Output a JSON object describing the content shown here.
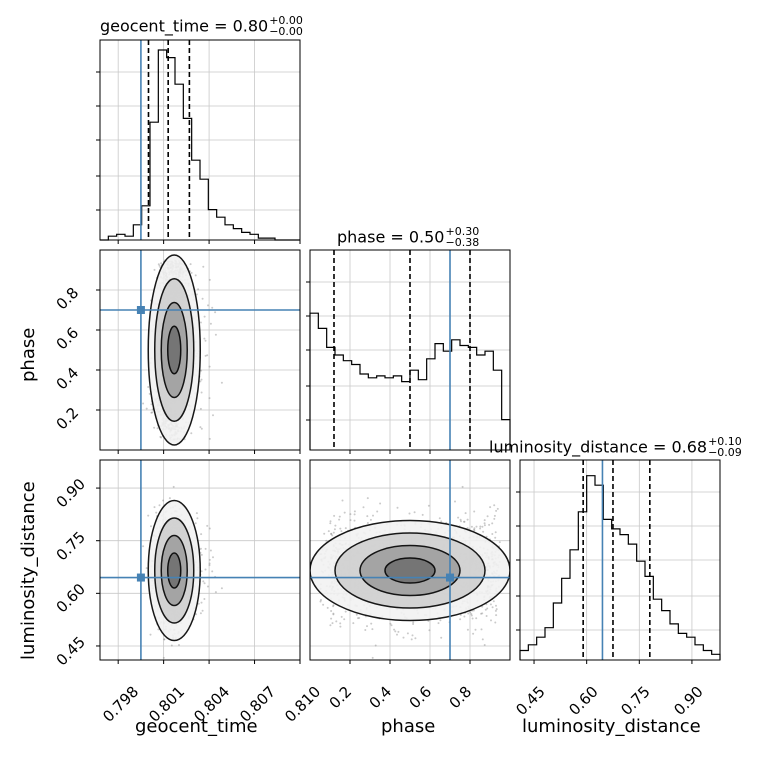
{
  "chart_data": {
    "type": "corner",
    "parameters": [
      "geocent_time",
      "phase",
      "luminosity_distance"
    ],
    "truths": {
      "geocent_time": 0.7995,
      "phase": 0.7,
      "luminosity_distance": 0.645
    },
    "axis_ranges": {
      "geocent_time": [
        0.7968,
        0.81
      ],
      "phase": [
        0.0,
        1.0
      ],
      "luminosity_distance": [
        0.41,
        0.98
      ]
    },
    "ticks": {
      "geocent_time": [
        "0.798",
        "0.801",
        "0.804",
        "0.807",
        "0.810"
      ],
      "phase": [
        "0.2",
        "0.4",
        "0.6",
        "0.8"
      ],
      "luminosity_distance": [
        "0.45",
        "0.60",
        "0.75",
        "0.90"
      ]
    },
    "titles": [
      {
        "param": "geocent_time",
        "name": "geocent_time",
        "value": "0.80",
        "plus": "+0.00",
        "minus": "−0.00"
      },
      {
        "param": "phase",
        "name": "phase",
        "value": "0.50",
        "plus": "+0.30",
        "minus": "−0.38"
      },
      {
        "param": "luminosity_distance",
        "name": "luminosity_distance",
        "value": "0.68",
        "plus": "+0.10",
        "minus": "−0.09"
      }
    ],
    "quantiles": {
      "geocent_time": [
        0.8,
        0.8013,
        0.8027
      ],
      "phase": [
        0.12,
        0.5,
        0.8
      ],
      "luminosity_distance": [
        0.59,
        0.675,
        0.78
      ]
    },
    "histograms": {
      "geocent_time": [
        0,
        0.02,
        0.03,
        0.02,
        0.08,
        0.18,
        0.62,
        1.0,
        0.96,
        0.82,
        0.64,
        0.42,
        0.32,
        0.16,
        0.12,
        0.08,
        0.06,
        0.04,
        0.03,
        0.01,
        0.01,
        0,
        0,
        0
      ],
      "phase": [
        0.72,
        0.64,
        0.54,
        0.5,
        0.47,
        0.45,
        0.4,
        0.38,
        0.39,
        0.38,
        0.39,
        0.36,
        0.42,
        0.37,
        0.48,
        0.56,
        0.52,
        0.58,
        0.55,
        0.54,
        0.5,
        0.52,
        0.42,
        0.16
      ],
      "luminosity_distance": [
        0.05,
        0.08,
        0.12,
        0.17,
        0.3,
        0.43,
        0.58,
        0.78,
        0.97,
        0.92,
        0.74,
        0.69,
        0.66,
        0.61,
        0.52,
        0.44,
        0.32,
        0.26,
        0.19,
        0.14,
        0.12,
        0.08,
        0.05,
        0.03
      ]
    }
  }
}
